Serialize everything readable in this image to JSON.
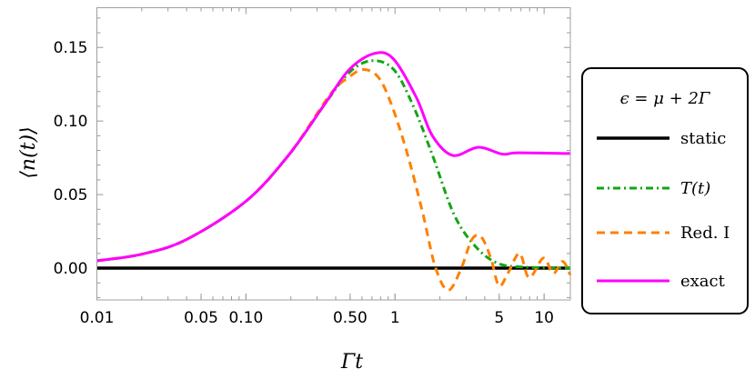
{
  "chart_data": {
    "type": "line",
    "xlabel": "Γt",
    "ylabel": "⟨n(t)⟩",
    "xscale": "log",
    "xlim": [
      0.01,
      15
    ],
    "ylim": [
      -0.0216,
      0.177
    ],
    "xticks": [
      {
        "v": 0.01,
        "label": "0.01"
      },
      {
        "v": 0.05,
        "label": "0.05"
      },
      {
        "v": 0.1,
        "label": "0.10"
      },
      {
        "v": 0.5,
        "label": "0.50"
      },
      {
        "v": 1,
        "label": "1"
      },
      {
        "v": 5,
        "label": "5"
      },
      {
        "v": 10,
        "label": "10"
      }
    ],
    "yticks": [
      {
        "v": 0,
        "label": "0.00"
      },
      {
        "v": 0.05,
        "label": "0.05"
      },
      {
        "v": 0.1,
        "label": "0.10"
      },
      {
        "v": 0.15,
        "label": "0.15"
      }
    ],
    "grid": false,
    "legend": {
      "title": "ϵ = μ + 2Γ",
      "placement": "right-outside"
    },
    "series": [
      {
        "name": "static",
        "color": "#000000",
        "style": "solid",
        "x": [
          0.01,
          15
        ],
        "y": [
          0,
          0
        ]
      },
      {
        "name": "T(t)",
        "color": "#12a612",
        "style": "dashdot",
        "x": [
          0.01,
          0.02,
          0.04,
          0.1,
          0.194,
          0.333,
          0.493,
          0.697,
          0.98,
          1.32,
          1.78,
          2.5,
          3.52,
          4.98,
          7.74,
          15
        ],
        "y": [
          0.005,
          0.0095,
          0.0195,
          0.0455,
          0.077,
          0.1106,
          0.133,
          0.141,
          0.135,
          0.1106,
          0.077,
          0.036,
          0.014,
          0.003,
          0.0006,
          0
        ]
      },
      {
        "name": "Red. I",
        "color": "#ff8000",
        "style": "dashed",
        "x": [
          0.01,
          0.02,
          0.04,
          0.1,
          0.194,
          0.367,
          0.493,
          0.615,
          0.769,
          0.936,
          1.2,
          1.53,
          1.86,
          2.27,
          2.76,
          3.28,
          3.8,
          4.4,
          4.98,
          5.75,
          6.85,
          7.94,
          9.91,
          11.5,
          13.3,
          15
        ],
        "y": [
          0.005,
          0.0095,
          0.0195,
          0.0455,
          0.077,
          0.118,
          0.13,
          0.135,
          0.13,
          0.1125,
          0.079,
          0.038,
          0.001,
          -0.015,
          -0.001,
          0.0195,
          0.021,
          0.0065,
          -0.012,
          -0.003,
          0.01,
          -0.0065,
          0.0069,
          -0.0037,
          0.0046,
          -0.0046
        ]
      },
      {
        "name": "exact",
        "color": "#ff00ff",
        "style": "solid",
        "x": [
          0.01,
          0.02,
          0.04,
          0.1,
          0.194,
          0.333,
          0.493,
          0.731,
          0.98,
          1.39,
          1.78,
          2.44,
          3.62,
          5.24,
          6.69,
          15
        ],
        "y": [
          0.005,
          0.0095,
          0.0195,
          0.0455,
          0.077,
          0.1106,
          0.135,
          0.146,
          0.142,
          0.116,
          0.09,
          0.0766,
          0.0822,
          0.0775,
          0.0784,
          0.0779
        ]
      }
    ]
  }
}
